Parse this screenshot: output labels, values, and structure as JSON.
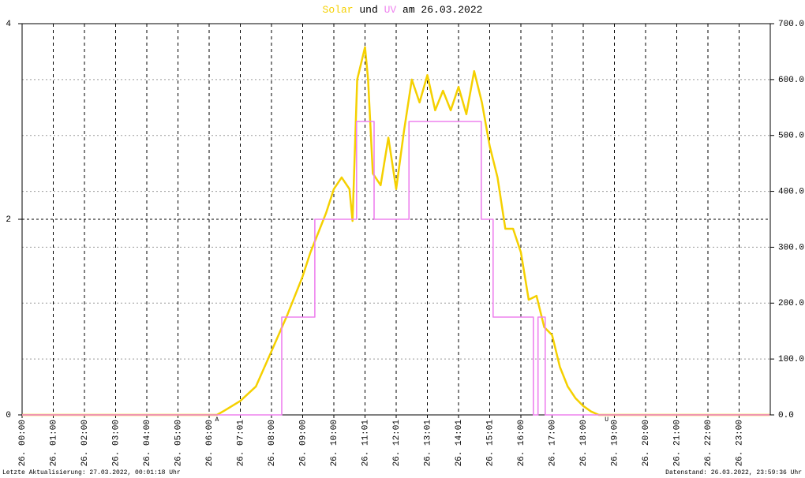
{
  "chart_data": {
    "type": "line",
    "title_connector": "und",
    "title_date": "am 26.03.2022",
    "footer_left": "Letzte Aktualisierung: 27.03.2022, 00:01:18 Uhr",
    "footer_right": "Datenstand: 26.03.2022, 23:59:36 Uhr",
    "annotations": [
      {
        "x": 6.25,
        "text": "A"
      },
      {
        "x": 18.75,
        "text": "U"
      }
    ],
    "xlim": [
      0,
      24
    ],
    "xticks": [
      {
        "value": 0,
        "label": "26. 00:00"
      },
      {
        "value": 1,
        "label": "26. 01:00"
      },
      {
        "value": 2,
        "label": "26. 02:00"
      },
      {
        "value": 3,
        "label": "26. 03:00"
      },
      {
        "value": 4,
        "label": "26. 04:00"
      },
      {
        "value": 5,
        "label": "26. 05:00"
      },
      {
        "value": 6,
        "label": "26. 06:00"
      },
      {
        "value": 7,
        "label": "26. 07:01"
      },
      {
        "value": 8,
        "label": "26. 08:00"
      },
      {
        "value": 9,
        "label": "26. 09:00"
      },
      {
        "value": 10,
        "label": "26. 10:00"
      },
      {
        "value": 11,
        "label": "26. 11:01"
      },
      {
        "value": 12,
        "label": "26. 12:01"
      },
      {
        "value": 13,
        "label": "26. 13:01"
      },
      {
        "value": 14,
        "label": "26. 14:01"
      },
      {
        "value": 15,
        "label": "26. 15:01"
      },
      {
        "value": 16,
        "label": "26. 16:00"
      },
      {
        "value": 17,
        "label": "26. 17:00"
      },
      {
        "value": 18,
        "label": "26. 18:00"
      },
      {
        "value": 19,
        "label": "26. 19:00"
      },
      {
        "value": 20,
        "label": "26. 20:00"
      },
      {
        "value": 21,
        "label": "26. 21:00"
      },
      {
        "value": 22,
        "label": "26. 22:00"
      },
      {
        "value": 23,
        "label": "26. 23:00"
      }
    ],
    "ylim": [
      0,
      4
    ],
    "yticks": [
      0,
      2,
      4
    ],
    "y2lim": [
      0,
      700
    ],
    "y2ticks": [
      {
        "value": 0,
        "label": "0.0"
      },
      {
        "value": 100,
        "label": "100.0"
      },
      {
        "value": 200,
        "label": "200.0"
      },
      {
        "value": 300,
        "label": "300.0"
      },
      {
        "value": 400,
        "label": "400.0"
      },
      {
        "value": 500,
        "label": "500.0"
      },
      {
        "value": 600,
        "label": "600.0"
      },
      {
        "value": 700,
        "label": "700.0"
      }
    ],
    "grid": true,
    "series": [
      {
        "name": "Solar",
        "color": "#f5d000",
        "axis": "y2",
        "x": [
          0,
          6.25,
          6.5,
          7,
          7.5,
          8,
          8.5,
          9,
          9.25,
          9.5,
          9.75,
          10,
          10.25,
          10.5,
          10.6,
          10.75,
          11,
          11.1,
          11.25,
          11.5,
          11.75,
          12,
          12.25,
          12.5,
          12.75,
          13,
          13.25,
          13.5,
          13.75,
          14,
          14.25,
          14.5,
          14.75,
          15,
          15.25,
          15.5,
          15.75,
          16,
          16.25,
          16.5,
          16.75,
          17,
          17.25,
          17.5,
          17.75,
          18,
          18.25,
          18.5,
          23.98
        ],
        "values": [
          0,
          0,
          8,
          25,
          51,
          114,
          178,
          248,
          291,
          326,
          361,
          404,
          425,
          404,
          347,
          600,
          658,
          600,
          432,
          411,
          496,
          404,
          508,
          600,
          559,
          608,
          545,
          580,
          545,
          587,
          538,
          615,
          559,
          481,
          425,
          333,
          333,
          291,
          206,
          213,
          157,
          143,
          86,
          51,
          30,
          16,
          6,
          0,
          0
        ]
      },
      {
        "name": "UV",
        "color": "#ee82ee",
        "axis": "y",
        "x": [
          0,
          8.33,
          8.33,
          9.39,
          9.39,
          10.73,
          10.73,
          11.29,
          11.29,
          12.41,
          12.41,
          14.73,
          14.73,
          15.11,
          15.11,
          16.4,
          16.4,
          16.55,
          16.55,
          16.78,
          16.78,
          23.98
        ],
        "values": [
          0,
          0,
          1,
          1,
          2,
          2,
          3,
          3,
          2,
          2,
          3,
          3,
          2,
          2,
          1,
          1,
          0,
          0,
          1,
          1,
          0,
          0
        ]
      }
    ]
  }
}
